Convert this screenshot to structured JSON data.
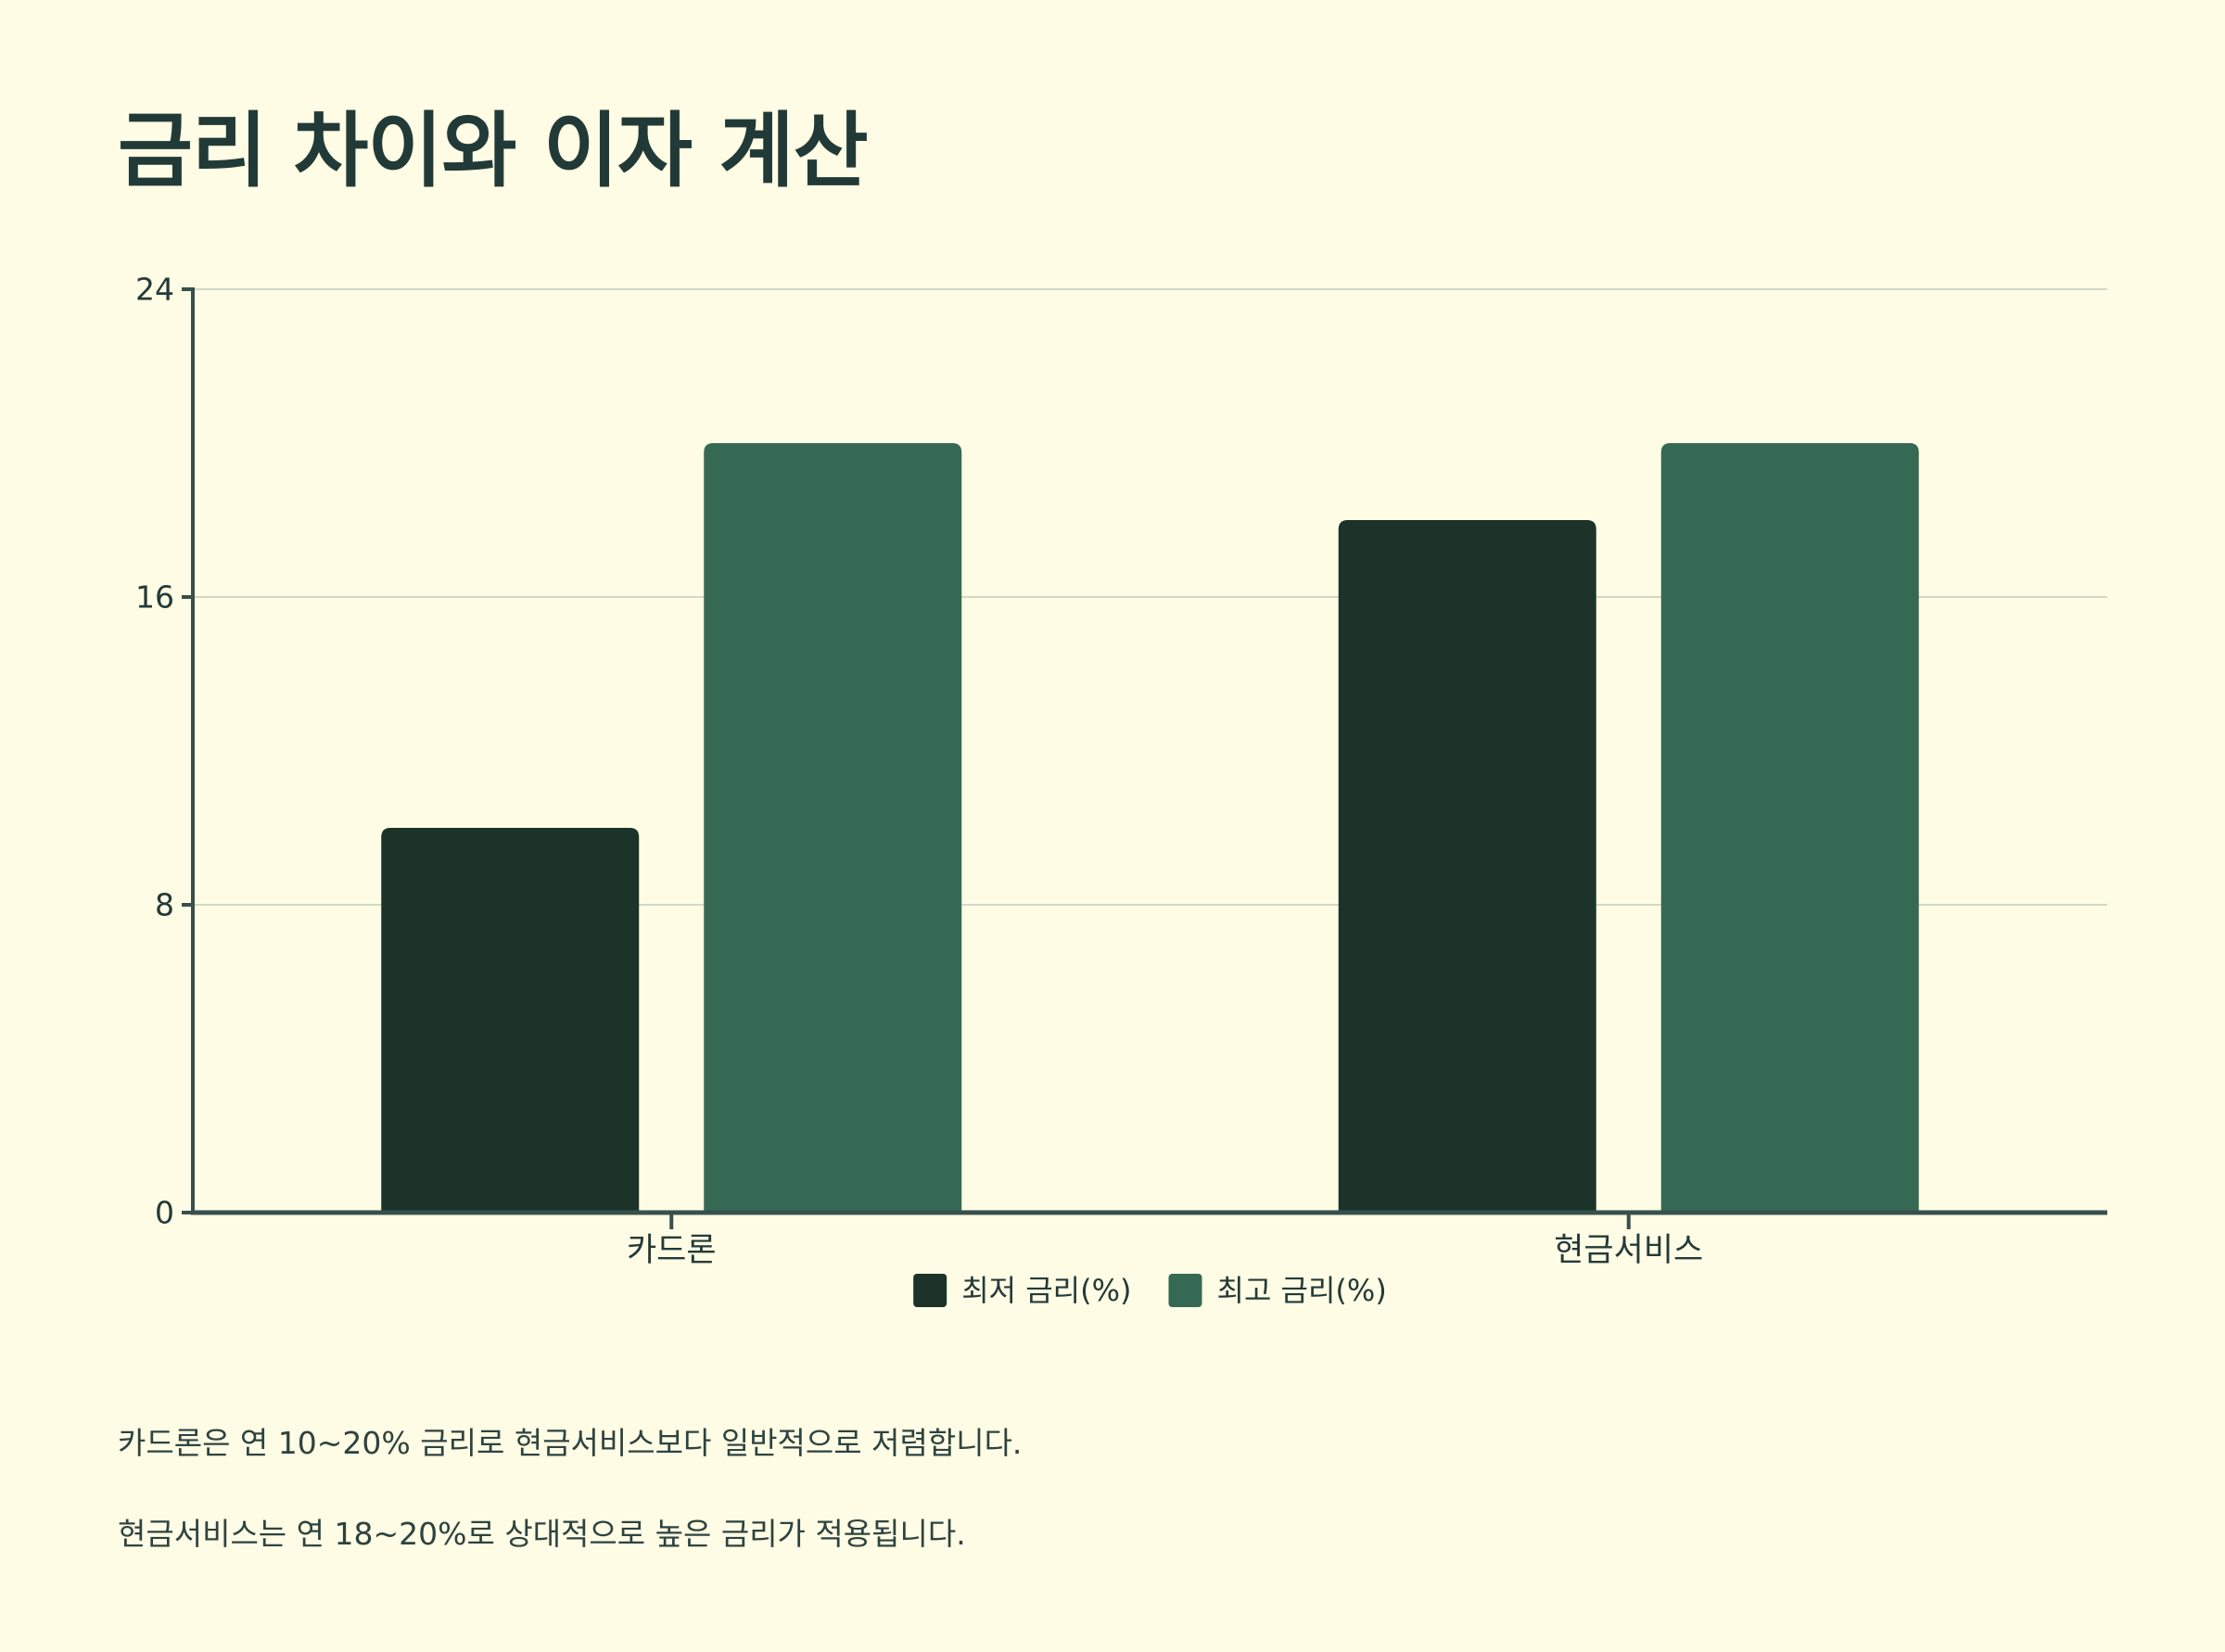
{
  "page": {
    "title": "금리 차이와 이자 계산",
    "notes": [
      "카드론은 연 10~20% 금리로 현금서비스보다 일반적으로 저렴합니다.",
      "현금서비스는 연 18~20%로 상대적으로 높은 금리가 적용됩니다."
    ]
  },
  "colors": {
    "background": "#fefce4",
    "text": "#243a38",
    "axis": "#37504c",
    "grid": "#d3d8c6",
    "series_min": "#1b3329",
    "series_max": "#366953"
  },
  "chart_data": {
    "type": "bar",
    "categories": [
      "카드론",
      "현금서비스"
    ],
    "series": [
      {
        "name": "최저 금리(%)",
        "values": [
          10,
          18
        ],
        "color": "#1b3329"
      },
      {
        "name": "최고 금리(%)",
        "values": [
          20,
          20
        ],
        "color": "#366953"
      }
    ],
    "ylim": [
      0,
      24
    ],
    "yticks": [
      0,
      8,
      16,
      24
    ],
    "grid": true,
    "legend": "bottom-center",
    "xlabel": "",
    "ylabel": ""
  }
}
